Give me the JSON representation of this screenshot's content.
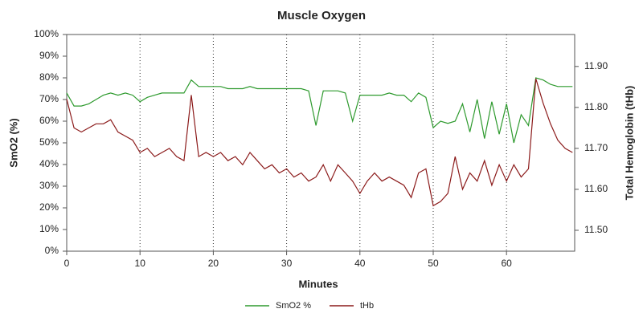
{
  "chart_data": {
    "type": "line",
    "title": "Muscle Oxygen",
    "x_label": "Minutes",
    "y_label": "SmO2 (%)",
    "y2_label": "Total Hemoglobin (tHb)",
    "x": [
      0,
      1,
      2,
      3,
      4,
      5,
      6,
      7,
      8,
      9,
      10,
      11,
      12,
      13,
      14,
      15,
      16,
      17,
      18,
      19,
      20,
      21,
      22,
      23,
      24,
      25,
      26,
      27,
      28,
      29,
      30,
      31,
      32,
      33,
      34,
      35,
      36,
      37,
      38,
      39,
      40,
      41,
      42,
      43,
      44,
      45,
      46,
      47,
      48,
      49,
      50,
      51,
      52,
      53,
      54,
      55,
      56,
      57,
      58,
      59,
      60,
      61,
      62,
      63,
      64,
      65,
      66,
      67,
      68,
      69
    ],
    "xlim": [
      0,
      69.3
    ],
    "xticks": [
      0,
      10,
      20,
      30,
      40,
      50,
      60
    ],
    "grid": true,
    "ylim": [
      0,
      100
    ],
    "yticks": [
      {
        "value": 0,
        "label": "0%"
      },
      {
        "value": 10,
        "label": "10%"
      },
      {
        "value": 20,
        "label": "20%"
      },
      {
        "value": 30,
        "label": "30%"
      },
      {
        "value": 40,
        "label": "40%"
      },
      {
        "value": 50,
        "label": "50%"
      },
      {
        "value": 60,
        "label": "60%"
      },
      {
        "value": 70,
        "label": "70%"
      },
      {
        "value": 80,
        "label": "80%"
      },
      {
        "value": 90,
        "label": "90%"
      },
      {
        "value": 100,
        "label": "100%"
      }
    ],
    "y2lim": [
      11.449,
      11.978
    ],
    "y2ticks": [
      {
        "value": 11.5,
        "label": "11.50"
      },
      {
        "value": 11.6,
        "label": "11.60"
      },
      {
        "value": 11.7,
        "label": "11.70"
      },
      {
        "value": 11.8,
        "label": "11.80"
      },
      {
        "value": 11.9,
        "label": "11.90"
      }
    ],
    "legend": "bottom",
    "series": [
      {
        "name": "SmO2 %",
        "color": "#2e9a2e",
        "values": [
          73,
          67,
          67,
          68,
          70,
          72,
          73,
          72,
          73,
          72,
          69,
          71,
          72,
          73,
          73,
          73,
          73,
          79,
          76,
          76,
          76,
          76,
          75,
          75,
          75,
          76,
          75,
          75,
          75,
          75,
          75,
          75,
          75,
          74,
          58,
          74,
          74,
          74,
          73,
          60,
          72,
          72,
          72,
          72,
          73,
          72,
          72,
          69,
          73,
          71,
          57,
          60,
          59,
          60,
          68,
          55,
          70,
          52,
          69,
          54,
          68,
          50,
          63,
          58,
          80,
          79,
          77,
          76,
          76,
          76
        ]
      },
      {
        "name": "tHb",
        "color": "#8b1a1a",
        "axis": "y2",
        "values": [
          11.82,
          11.75,
          11.74,
          11.75,
          11.76,
          11.76,
          11.77,
          11.74,
          11.73,
          11.72,
          11.69,
          11.7,
          11.68,
          11.69,
          11.7,
          11.68,
          11.67,
          11.83,
          11.68,
          11.69,
          11.68,
          11.69,
          11.67,
          11.68,
          11.66,
          11.69,
          11.67,
          11.65,
          11.66,
          11.64,
          11.65,
          11.63,
          11.64,
          11.62,
          11.63,
          11.66,
          11.62,
          11.66,
          11.64,
          11.62,
          11.59,
          11.62,
          11.64,
          11.62,
          11.63,
          11.62,
          11.61,
          11.58,
          11.64,
          11.65,
          11.56,
          11.57,
          11.59,
          11.68,
          11.6,
          11.64,
          11.62,
          11.67,
          11.61,
          11.66,
          11.62,
          11.66,
          11.63,
          11.65,
          11.87,
          11.81,
          11.76,
          11.72,
          11.7,
          11.69
        ]
      }
    ]
  }
}
